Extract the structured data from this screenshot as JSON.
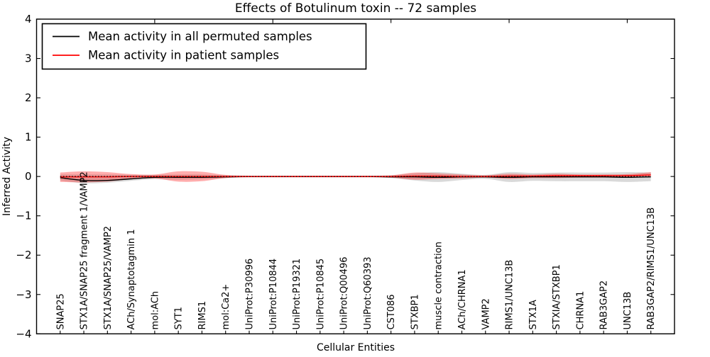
{
  "window": {
    "title": "Effects of Botulinum toxin -- 72 samples"
  },
  "chart_data": {
    "type": "line",
    "title": "Effects of Botulinum toxin -- 72 samples",
    "xlabel": "Cellular Entities",
    "ylabel": "Inferred Activity",
    "ylim": [
      -4,
      4
    ],
    "xlim": [
      0,
      27
    ],
    "yticks": [
      -4,
      -3,
      -2,
      -1,
      0,
      1,
      2,
      3,
      4
    ],
    "xticks_top": [
      5,
      10,
      15,
      20,
      25
    ],
    "grid": false,
    "legend_position": "upper left",
    "categories": [
      "SNAP25",
      "STX1A/SNAP25 fragment 1/VAMP2",
      "STX1A/SNAP25/VAMP2",
      "ACh/Synaptotagmin 1",
      "mol:ACh",
      "SYT1",
      "RIMS1",
      "mol:Ca2+",
      "UniProt:P30996",
      "UniProt:P10844",
      "UniProt:P19321",
      "UniProt:P10845",
      "UniProt:Q00496",
      "UniProt:Q60393",
      "CST086",
      "STXBP1",
      "muscle contraction",
      "ACh/CHRNA1",
      "VAMP2",
      "RIMS1/UNC13B",
      "STX1A",
      "STXIA/STXBP1",
      "CHRNA1",
      "RAB3GAP2",
      "UNC13B",
      "RAB3GAP2/RIMS1/UNC13B"
    ],
    "series": [
      {
        "name": "Mean activity in all permuted samples",
        "color": "#000000",
        "line_style": "solid",
        "values": [
          -0.03,
          -0.1,
          -0.1,
          -0.06,
          -0.02,
          -0.02,
          -0.02,
          -0.01,
          0,
          0,
          0,
          0,
          0,
          0,
          -0.01,
          -0.01,
          -0.02,
          -0.01,
          -0.01,
          -0.02,
          -0.01,
          -0.01,
          -0.01,
          -0.01,
          -0.02,
          -0.01
        ],
        "band": {
          "fill": "rgba(0,0,0,0.15)",
          "upper": [
            0.05,
            0.05,
            0.05,
            0.04,
            0.04,
            0.05,
            0.05,
            0.03,
            0.02,
            0.02,
            0.02,
            0.02,
            0.02,
            0.02,
            0.03,
            0.08,
            0.11,
            0.07,
            0.04,
            0.11,
            0.09,
            0.1,
            0.1,
            0.1,
            0.11,
            0.1
          ],
          "lower": [
            -0.1,
            -0.17,
            -0.16,
            -0.11,
            -0.07,
            -0.08,
            -0.07,
            -0.04,
            -0.02,
            -0.02,
            -0.02,
            -0.02,
            -0.02,
            -0.02,
            -0.04,
            -0.1,
            -0.14,
            -0.09,
            -0.06,
            -0.14,
            -0.11,
            -0.12,
            -0.12,
            -0.12,
            -0.14,
            -0.12
          ]
        }
      },
      {
        "name": "Mean activity in patient samples",
        "color": "#ff0000",
        "line_style": "solid",
        "values": [
          -0.01,
          -0.01,
          -0.01,
          0,
          0,
          0,
          0,
          0,
          0,
          0,
          0,
          0,
          0,
          0,
          0,
          0.01,
          0.01,
          0,
          0,
          0.01,
          0.01,
          0.02,
          0.02,
          0.02,
          0.02,
          0.04
        ],
        "band": {
          "fill": "rgba(255,0,0,0.32)",
          "upper": [
            0.1,
            0.13,
            0.11,
            0.06,
            0.05,
            0.13,
            0.12,
            0.04,
            0.02,
            0.02,
            0.02,
            0.02,
            0.02,
            0.02,
            0.03,
            0.1,
            0.08,
            0.05,
            0.03,
            0.07,
            0.05,
            0.07,
            0.05,
            0.05,
            0.06,
            0.11
          ],
          "lower": [
            -0.14,
            -0.15,
            -0.13,
            -0.07,
            -0.05,
            -0.13,
            -0.12,
            -0.04,
            -0.02,
            -0.02,
            -0.02,
            -0.02,
            -0.02,
            -0.02,
            -0.03,
            -0.08,
            -0.06,
            -0.05,
            -0.03,
            -0.06,
            -0.04,
            -0.04,
            -0.03,
            -0.03,
            -0.03,
            -0.02
          ]
        }
      }
    ],
    "reference_line": {
      "y": 0,
      "style": "dotted",
      "color": "#000000"
    }
  }
}
